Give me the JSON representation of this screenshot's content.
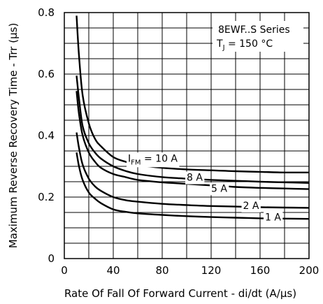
{
  "chart_data": {
    "type": "line",
    "title": "",
    "annotation": {
      "series_name": "8EWF..S Series",
      "condition_main": "T",
      "condition_sub": "J",
      "condition_rest": " = 150 °C"
    },
    "xlabel": "Rate Of Fall Of Forward Current - di/dt (A/µs)",
    "ylabel": "Maximum Reverse Recovery Time - Trr (µs)",
    "xlim": [
      0,
      200
    ],
    "ylim": [
      0,
      0.8
    ],
    "x_ticks": [
      "0",
      "40",
      "80",
      "120",
      "160",
      "200"
    ],
    "y_ticks": [
      "0",
      "0.2",
      "0.4",
      "0.6",
      "0.8"
    ],
    "grid": true,
    "series": [
      {
        "name": "I FM = 10 A",
        "label_main": "I",
        "label_sub": "FM",
        "label_rest": " = 10 A",
        "x": [
          10,
          12,
          15,
          20,
          25,
          30,
          40,
          50,
          60,
          80,
          100,
          120,
          140,
          160,
          180,
          200
        ],
        "y": [
          0.79,
          0.66,
          0.53,
          0.44,
          0.39,
          0.365,
          0.33,
          0.315,
          0.305,
          0.295,
          0.29,
          0.287,
          0.284,
          0.282,
          0.28,
          0.28
        ]
      },
      {
        "name": "8 A",
        "label_main": "8 A",
        "x": [
          10,
          12,
          15,
          20,
          25,
          30,
          40,
          50,
          60,
          80,
          100,
          120,
          140,
          160,
          180,
          200
        ],
        "y": [
          0.595,
          0.52,
          0.43,
          0.375,
          0.345,
          0.325,
          0.3,
          0.285,
          0.275,
          0.265,
          0.26,
          0.256,
          0.253,
          0.25,
          0.248,
          0.246
        ]
      },
      {
        "name": "5 A",
        "label_main": "5 A",
        "x": [
          10,
          12,
          15,
          20,
          25,
          30,
          40,
          50,
          60,
          80,
          100,
          120,
          140,
          160,
          180,
          200
        ],
        "y": [
          0.545,
          0.47,
          0.4,
          0.345,
          0.315,
          0.295,
          0.275,
          0.265,
          0.256,
          0.248,
          0.243,
          0.238,
          0.233,
          0.23,
          0.228,
          0.226
        ]
      },
      {
        "name": "2 A",
        "label_main": "2 A",
        "x": [
          10,
          12,
          15,
          20,
          25,
          30,
          40,
          50,
          60,
          80,
          100,
          120,
          140,
          160,
          180,
          200
        ],
        "y": [
          0.41,
          0.36,
          0.305,
          0.26,
          0.235,
          0.22,
          0.2,
          0.19,
          0.185,
          0.178,
          0.174,
          0.171,
          0.169,
          0.167,
          0.166,
          0.165
        ]
      },
      {
        "name": "1 A",
        "label_main": "1 A",
        "x": [
          10,
          12,
          15,
          20,
          25,
          30,
          40,
          50,
          60,
          80,
          100,
          120,
          140,
          160,
          180,
          200
        ],
        "y": [
          0.345,
          0.3,
          0.255,
          0.215,
          0.195,
          0.18,
          0.16,
          0.152,
          0.147,
          0.142,
          0.138,
          0.135,
          0.133,
          0.131,
          0.13,
          0.129
        ]
      }
    ]
  }
}
